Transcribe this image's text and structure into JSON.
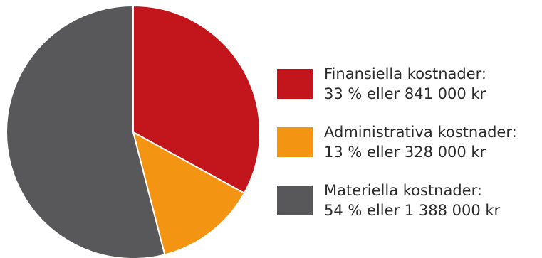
{
  "chart_data": {
    "type": "pie",
    "slices": [
      {
        "label": "Finansiella kostnader:",
        "detail": "33 % eller 841 000 kr",
        "percent": 33,
        "value": 841000,
        "color": "#c2161c"
      },
      {
        "label": "Administrativa kostnader:",
        "detail": "13 % eller 328 000 kr",
        "percent": 13,
        "value": 328000,
        "color": "#f39512"
      },
      {
        "label": "Materiella kostnader:",
        "detail": "54 % eller 1 388 000 kr",
        "percent": 54,
        "value": 1388000,
        "color": "#58585a"
      }
    ],
    "start": "top",
    "direction": "clockwise",
    "legend_position": "right"
  }
}
